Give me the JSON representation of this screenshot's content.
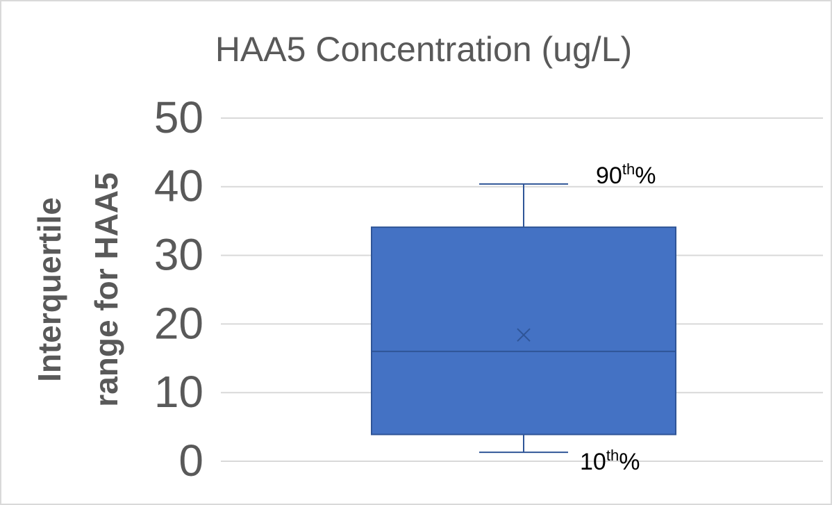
{
  "chart_data": {
    "type": "box",
    "title": "HAA5 Concentration (ug/L)",
    "ylabel": [
      "Interquertile",
      "range for HAA5"
    ],
    "ylim": [
      0,
      50
    ],
    "yticks": [
      0,
      10,
      20,
      30,
      40,
      50
    ],
    "grid": true,
    "color": "#4472c4",
    "edge_color": "#2f5597",
    "box": {
      "whisker_low": 1.3,
      "q1": 3.9,
      "median": 16,
      "mean": 18.4,
      "q3": 34.1,
      "whisker_high": 40.4
    },
    "annotations": [
      {
        "parts": [
          "90",
          "th",
          "%"
        ]
      },
      {
        "parts": [
          "10",
          "th",
          "%"
        ]
      }
    ]
  }
}
